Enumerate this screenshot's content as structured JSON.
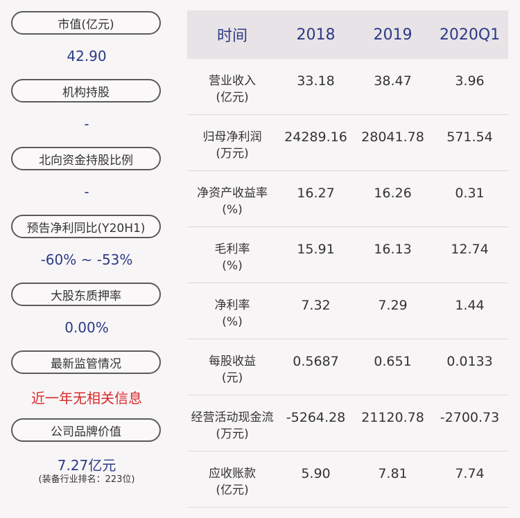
{
  "left": {
    "items": [
      {
        "label": "市值(亿元)",
        "value": "42.90"
      },
      {
        "label": "机构持股",
        "value": "-"
      },
      {
        "label": "北向资金持股比例",
        "value": "-"
      },
      {
        "label": "预告净利同比(Y20H1)",
        "value": "-60% ~ -53%"
      },
      {
        "label": "大股东质押率",
        "value": "0.00%"
      },
      {
        "label": "最新监管情况",
        "value": "近一年无相关信息"
      },
      {
        "label": "公司品牌价值",
        "value": "7.27亿元",
        "note": "(装备行业排名：223位)"
      }
    ]
  },
  "table": {
    "headers": [
      "时间",
      "2018",
      "2019",
      "2020Q1"
    ],
    "rows": [
      {
        "label": "营业收入",
        "unit": "(亿元)",
        "values": [
          "33.18",
          "38.47",
          "3.96"
        ]
      },
      {
        "label": "归母净利润",
        "unit": "(万元)",
        "values": [
          "24289.16",
          "28041.78",
          "571.54"
        ]
      },
      {
        "label": "净资产收益率",
        "unit": "(%)",
        "values": [
          "16.27",
          "16.26",
          "0.31"
        ]
      },
      {
        "label": "毛利率",
        "unit": "(%)",
        "values": [
          "15.91",
          "16.13",
          "12.74"
        ]
      },
      {
        "label": "净利率",
        "unit": "(%)",
        "values": [
          "7.32",
          "7.29",
          "1.44"
        ]
      },
      {
        "label": "每股收益",
        "unit": "(元)",
        "values": [
          "0.5687",
          "0.651",
          "0.0133"
        ]
      },
      {
        "label": "经营活动现金流",
        "unit": "(万元)",
        "values": [
          "-5264.28",
          "21120.78",
          "-2700.73"
        ]
      },
      {
        "label": "应收账款",
        "unit": "(亿元)",
        "values": [
          "5.90",
          "7.81",
          "7.74"
        ]
      }
    ]
  },
  "colors": {
    "value_blue": "#2b3a86",
    "alert_red": "#d92a2a",
    "header_bg": "#e8e3e6"
  }
}
